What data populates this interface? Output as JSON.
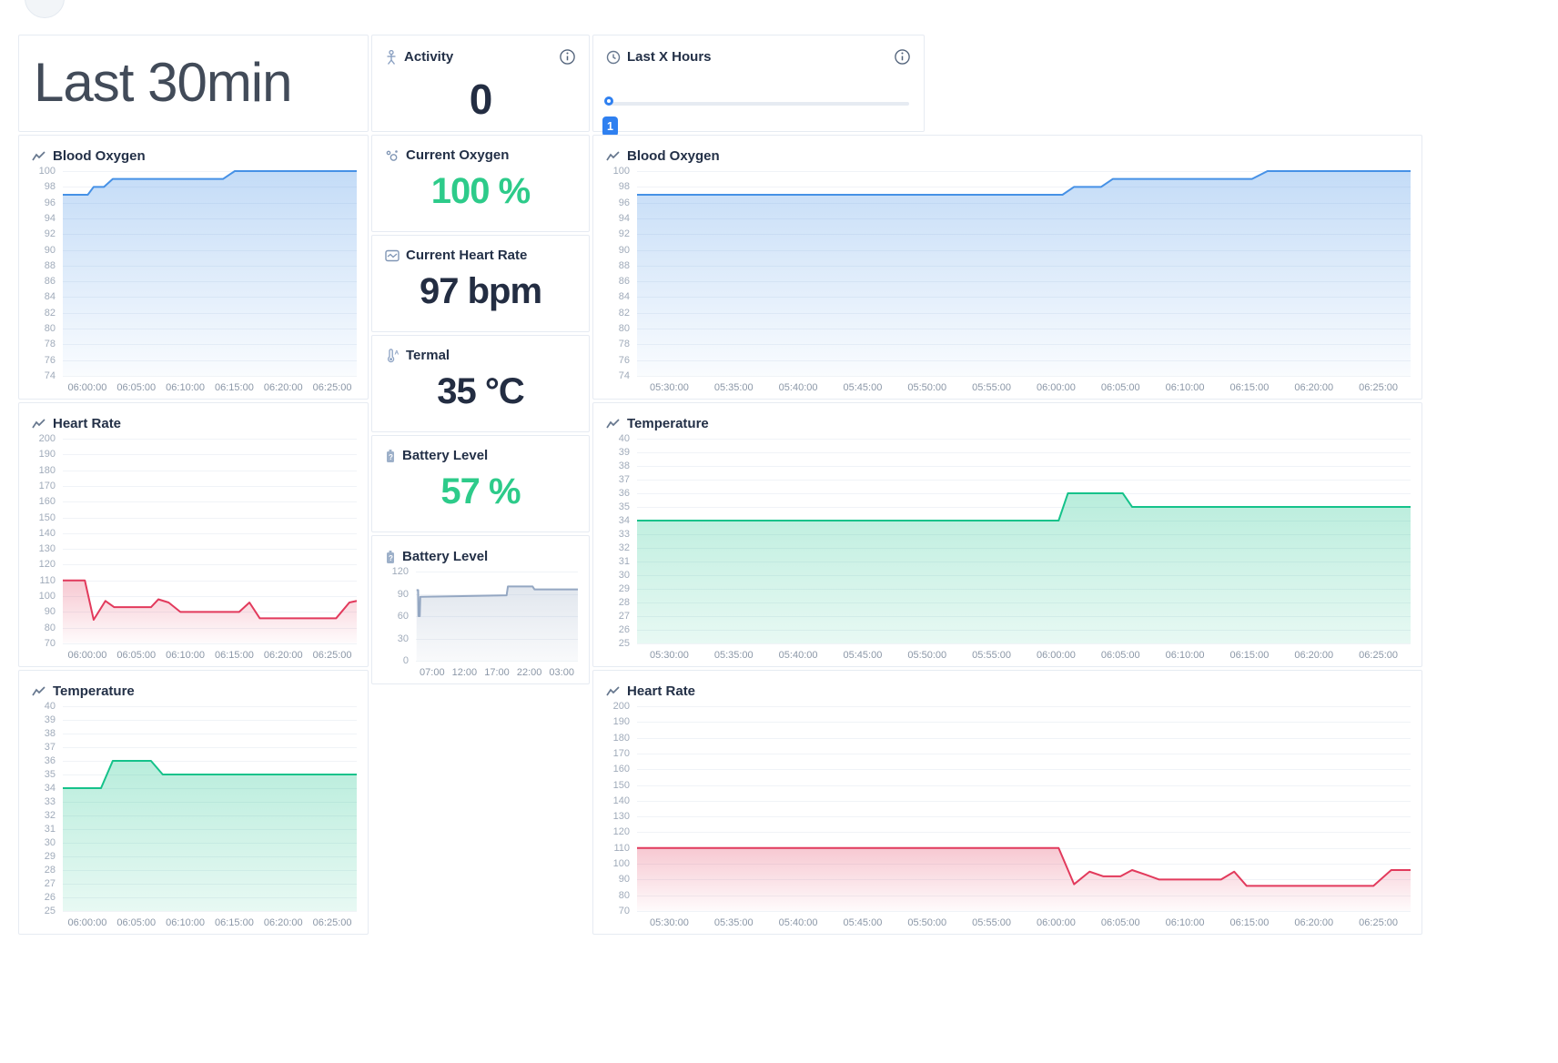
{
  "page": {
    "title": "Last 30min"
  },
  "activity_card": {
    "label": "Activity",
    "value": "0"
  },
  "hours_card": {
    "label": "Last X Hours",
    "slider_value": "1"
  },
  "stats": [
    {
      "label": "Current Oxygen",
      "value": "100 %",
      "color_hex": "#2dcb8a"
    },
    {
      "label": "Current Heart Rate",
      "value": "97 bpm",
      "color_hex": "#232d42"
    },
    {
      "label": "Termal",
      "value": "35 °C",
      "color_hex": "#232d42"
    },
    {
      "label": "Battery Level",
      "value": "57 %",
      "color_hex": "#2dcb8a"
    }
  ],
  "colors": {
    "accent_blue": "#2f80f0",
    "value_green": "#2dcb8a",
    "value_dark": "#232d42",
    "blood_oxygen_line": "#4691e6",
    "heart_rate_line": "#e23a5c",
    "temperature_line": "#15c28a",
    "battery_line": "#94a7c2"
  },
  "chart_data": [
    {
      "id": "left-blood-oxygen",
      "type": "area",
      "title": "Blood Oxygen",
      "line_color": "#4691e6",
      "fill_top_opacity": 0.32,
      "fill_bottom_opacity": 0.03,
      "y_min": 74,
      "y_max": 100,
      "y_ticks": [
        "100",
        "98",
        "96",
        "94",
        "92",
        "90",
        "88",
        "86",
        "84",
        "82",
        "80",
        "78",
        "76",
        "74"
      ],
      "x_ticks": [
        "06:00:00",
        "06:05:00",
        "06:10:00",
        "06:15:00",
        "06:20:00",
        "06:25:00"
      ],
      "points": [
        [
          0,
          97
        ],
        [
          0.085,
          97
        ],
        [
          0.105,
          98
        ],
        [
          0.14,
          98
        ],
        [
          0.17,
          99
        ],
        [
          0.545,
          99
        ],
        [
          0.585,
          100
        ],
        [
          1,
          100
        ]
      ]
    },
    {
      "id": "left-heart-rate",
      "type": "area",
      "title": "Heart Rate",
      "line_color": "#e23a5c",
      "fill_top_opacity": 0.28,
      "fill_bottom_opacity": 0.02,
      "y_min": 70,
      "y_max": 200,
      "y_ticks": [
        "200",
        "190",
        "180",
        "170",
        "160",
        "150",
        "140",
        "130",
        "120",
        "110",
        "100",
        "90",
        "80",
        "70"
      ],
      "x_ticks": [
        "06:00:00",
        "06:05:00",
        "06:10:00",
        "06:15:00",
        "06:20:00",
        "06:25:00"
      ],
      "points": [
        [
          0,
          110
        ],
        [
          0.075,
          110
        ],
        [
          0.105,
          85
        ],
        [
          0.145,
          97
        ],
        [
          0.175,
          93
        ],
        [
          0.3,
          93
        ],
        [
          0.325,
          98
        ],
        [
          0.36,
          96
        ],
        [
          0.4,
          90
        ],
        [
          0.6,
          90
        ],
        [
          0.635,
          96
        ],
        [
          0.67,
          86
        ],
        [
          0.93,
          86
        ],
        [
          0.975,
          96
        ],
        [
          1,
          97
        ]
      ]
    },
    {
      "id": "left-temperature",
      "type": "area",
      "title": "Temperature",
      "line_color": "#15c28a",
      "fill_top_opacity": 0.3,
      "fill_bottom_opacity": 0.1,
      "y_min": 25,
      "y_max": 40,
      "y_ticks": [
        "40",
        "39",
        "38",
        "37",
        "36",
        "35",
        "34",
        "33",
        "32",
        "31",
        "30",
        "29",
        "28",
        "27",
        "26",
        "25"
      ],
      "x_ticks": [
        "06:00:00",
        "06:05:00",
        "06:10:00",
        "06:15:00",
        "06:20:00",
        "06:25:00"
      ],
      "points": [
        [
          0,
          34
        ],
        [
          0.13,
          34
        ],
        [
          0.17,
          36
        ],
        [
          0.3,
          36
        ],
        [
          0.34,
          35
        ],
        [
          1,
          35
        ]
      ]
    },
    {
      "id": "battery-level",
      "type": "area",
      "title": "Battery Level",
      "line_color": "#94a7c2",
      "fill_top_opacity": 0.28,
      "fill_bottom_opacity": 0.06,
      "y_min": 0,
      "y_max": 120,
      "y_ticks": [
        "120",
        "90",
        "60",
        "30",
        "0"
      ],
      "x_ticks": [
        "07:00",
        "12:00",
        "17:00",
        "22:00",
        "03:00"
      ],
      "points": [
        [
          0.004,
          95
        ],
        [
          0.014,
          95
        ],
        [
          0.016,
          60
        ],
        [
          0.024,
          60
        ],
        [
          0.027,
          86
        ],
        [
          0.56,
          88
        ],
        [
          0.568,
          100
        ],
        [
          0.72,
          100
        ],
        [
          0.732,
          96
        ],
        [
          1,
          96
        ]
      ]
    },
    {
      "id": "right-blood-oxygen",
      "type": "area",
      "title": "Blood Oxygen",
      "line_color": "#4691e6",
      "fill_top_opacity": 0.32,
      "fill_bottom_opacity": 0.03,
      "y_min": 74,
      "y_max": 100,
      "y_ticks": [
        "100",
        "98",
        "96",
        "94",
        "92",
        "90",
        "88",
        "86",
        "84",
        "82",
        "80",
        "78",
        "76",
        "74"
      ],
      "x_ticks": [
        "05:30:00",
        "05:35:00",
        "05:40:00",
        "05:45:00",
        "05:50:00",
        "05:55:00",
        "06:00:00",
        "06:05:00",
        "06:10:00",
        "06:15:00",
        "06:20:00",
        "06:25:00"
      ],
      "points": [
        [
          0,
          97
        ],
        [
          0.55,
          97
        ],
        [
          0.565,
          98
        ],
        [
          0.6,
          98
        ],
        [
          0.615,
          99
        ],
        [
          0.795,
          99
        ],
        [
          0.815,
          100
        ],
        [
          1,
          100
        ]
      ]
    },
    {
      "id": "right-temperature",
      "type": "area",
      "title": "Temperature",
      "line_color": "#15c28a",
      "fill_top_opacity": 0.3,
      "fill_bottom_opacity": 0.1,
      "y_min": 25,
      "y_max": 40,
      "y_ticks": [
        "40",
        "39",
        "38",
        "37",
        "36",
        "35",
        "34",
        "33",
        "32",
        "31",
        "30",
        "29",
        "28",
        "27",
        "26",
        "25"
      ],
      "x_ticks": [
        "05:30:00",
        "05:35:00",
        "05:40:00",
        "05:45:00",
        "05:50:00",
        "05:55:00",
        "06:00:00",
        "06:05:00",
        "06:10:00",
        "06:15:00",
        "06:20:00",
        "06:25:00"
      ],
      "points": [
        [
          0,
          34
        ],
        [
          0.545,
          34
        ],
        [
          0.557,
          36
        ],
        [
          0.628,
          36
        ],
        [
          0.64,
          35
        ],
        [
          1,
          35
        ]
      ]
    },
    {
      "id": "right-heart-rate",
      "type": "area",
      "title": "Heart Rate",
      "line_color": "#e23a5c",
      "fill_top_opacity": 0.28,
      "fill_bottom_opacity": 0.02,
      "y_min": 70,
      "y_max": 200,
      "y_ticks": [
        "200",
        "190",
        "180",
        "170",
        "160",
        "150",
        "140",
        "130",
        "120",
        "110",
        "100",
        "90",
        "80",
        "70"
      ],
      "x_ticks": [
        "05:30:00",
        "05:35:00",
        "05:40:00",
        "05:45:00",
        "05:50:00",
        "05:55:00",
        "06:00:00",
        "06:05:00",
        "06:10:00",
        "06:15:00",
        "06:20:00",
        "06:25:00"
      ],
      "points": [
        [
          0,
          110
        ],
        [
          0.545,
          110
        ],
        [
          0.565,
          87
        ],
        [
          0.585,
          95
        ],
        [
          0.603,
          92
        ],
        [
          0.625,
          92
        ],
        [
          0.64,
          96
        ],
        [
          0.658,
          93
        ],
        [
          0.675,
          90
        ],
        [
          0.755,
          90
        ],
        [
          0.772,
          95
        ],
        [
          0.788,
          86
        ],
        [
          0.952,
          86
        ],
        [
          0.975,
          96
        ],
        [
          1,
          96
        ]
      ]
    }
  ]
}
